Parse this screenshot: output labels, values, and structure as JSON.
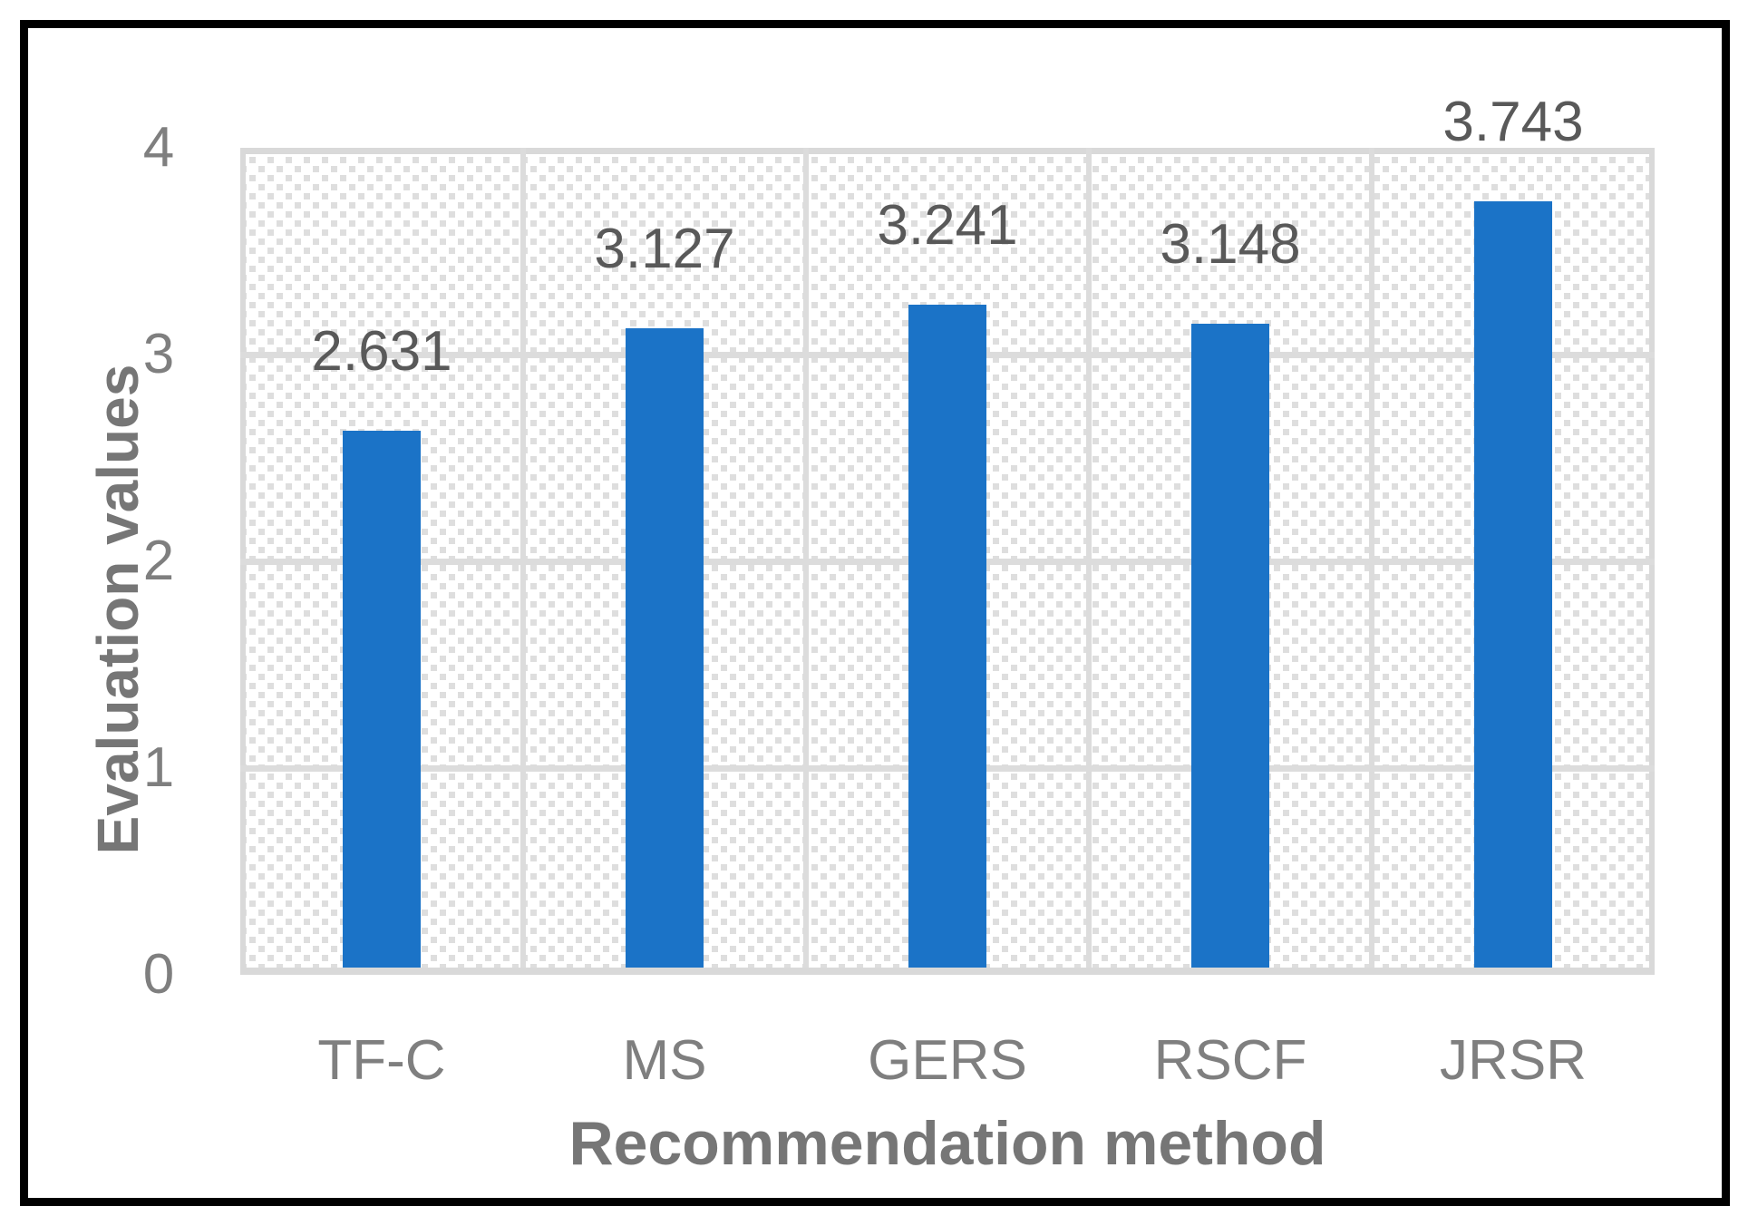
{
  "figure": {
    "border_color": "#000000",
    "background_color": "#ffffff"
  },
  "chart_data": {
    "type": "bar",
    "title": "",
    "categories": [
      "TF-C",
      "MS",
      "GERS",
      "RSCF",
      "JRSR"
    ],
    "values": [
      2.631,
      3.127,
      3.241,
      3.148,
      3.743
    ],
    "value_labels": [
      "2.631",
      "3.127",
      "3.241",
      "3.148",
      "3.743"
    ],
    "xlabel": "Recommendation method",
    "ylabel": "Evaluation values",
    "ylim": [
      0,
      4
    ],
    "yticks": [
      0,
      1,
      2,
      3,
      4
    ],
    "grid": true,
    "legend_position": "none",
    "plot_background": "diagonal-hatch-pattern",
    "colors": {
      "bar": "#1b73c7",
      "gridline": "#dcdcdc",
      "hatch": "#dedede",
      "tick_label": "#7f7f7f",
      "category_label": "#7f7f7f",
      "data_label": "#595959",
      "axis_title": "#767676"
    }
  }
}
